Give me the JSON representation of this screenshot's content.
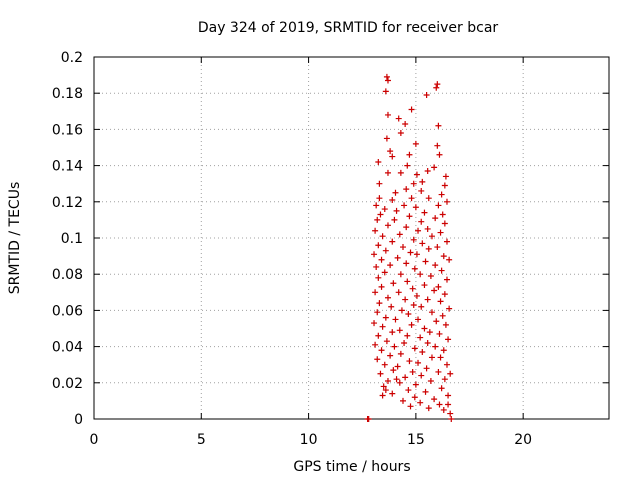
{
  "chart_data": {
    "type": "scatter",
    "title": "Day 324 of 2019, SRMTID for receiver bcar",
    "xlabel": "GPS time / hours",
    "ylabel": "SRMTID / TECUs",
    "xlim": [
      0,
      24
    ],
    "ylim": [
      0,
      0.2
    ],
    "x_ticks": [
      0,
      5,
      10,
      15,
      20
    ],
    "x_tick_labels": [
      "0",
      "5",
      "10",
      "15",
      "20"
    ],
    "y_ticks": [
      0,
      0.02,
      0.04,
      0.06,
      0.08,
      0.1,
      0.12,
      0.14,
      0.16,
      0.18,
      0.2
    ],
    "y_tick_labels": [
      "0",
      "0.02",
      "0.04",
      "0.06",
      "0.08",
      "0.1",
      "0.12",
      "0.14",
      "0.16",
      "0.18",
      "0.2"
    ],
    "grid": true,
    "marker": "plus",
    "color": "#cc0000",
    "series": [
      {
        "name": "SRMTID",
        "points": [
          [
            12.75,
            0.0
          ],
          [
            12.8,
            0.0
          ],
          [
            16.65,
            0.0
          ],
          [
            16.6,
            0.003
          ],
          [
            16.5,
            0.008
          ],
          [
            13.65,
            0.189
          ],
          [
            13.7,
            0.187
          ],
          [
            16.0,
            0.185
          ],
          [
            15.95,
            0.183
          ],
          [
            13.6,
            0.181
          ],
          [
            15.5,
            0.179
          ],
          [
            14.8,
            0.171
          ],
          [
            13.7,
            0.168
          ],
          [
            14.2,
            0.166
          ],
          [
            16.05,
            0.162
          ],
          [
            14.5,
            0.163
          ],
          [
            14.3,
            0.158
          ],
          [
            13.65,
            0.155
          ],
          [
            15.0,
            0.152
          ],
          [
            16.0,
            0.151
          ],
          [
            13.8,
            0.148
          ],
          [
            14.7,
            0.146
          ],
          [
            16.1,
            0.146
          ],
          [
            13.9,
            0.145
          ],
          [
            13.25,
            0.142
          ],
          [
            14.6,
            0.14
          ],
          [
            15.85,
            0.139
          ],
          [
            15.05,
            0.135
          ],
          [
            15.55,
            0.137
          ],
          [
            14.3,
            0.136
          ],
          [
            13.7,
            0.136
          ],
          [
            16.4,
            0.134
          ],
          [
            14.9,
            0.13
          ],
          [
            15.3,
            0.131
          ],
          [
            16.35,
            0.129
          ],
          [
            13.3,
            0.13
          ],
          [
            14.55,
            0.127
          ],
          [
            14.05,
            0.125
          ],
          [
            16.2,
            0.124
          ],
          [
            15.25,
            0.126
          ],
          [
            15.6,
            0.122
          ],
          [
            13.3,
            0.122
          ],
          [
            14.8,
            0.122
          ],
          [
            13.9,
            0.121
          ],
          [
            16.45,
            0.12
          ],
          [
            13.15,
            0.118
          ],
          [
            14.45,
            0.118
          ],
          [
            15.0,
            0.117
          ],
          [
            16.05,
            0.118
          ],
          [
            13.55,
            0.116
          ],
          [
            14.1,
            0.115
          ],
          [
            15.4,
            0.114
          ],
          [
            13.35,
            0.113
          ],
          [
            16.25,
            0.113
          ],
          [
            14.7,
            0.112
          ],
          [
            15.9,
            0.111
          ],
          [
            13.2,
            0.11
          ],
          [
            14.0,
            0.11
          ],
          [
            15.25,
            0.109
          ],
          [
            16.35,
            0.108
          ],
          [
            13.7,
            0.107
          ],
          [
            14.55,
            0.106
          ],
          [
            15.55,
            0.105
          ],
          [
            13.1,
            0.104
          ],
          [
            15.1,
            0.104
          ],
          [
            16.15,
            0.103
          ],
          [
            14.25,
            0.102
          ],
          [
            13.45,
            0.101
          ],
          [
            15.75,
            0.101
          ],
          [
            14.9,
            0.099
          ],
          [
            13.9,
            0.098
          ],
          [
            16.45,
            0.098
          ],
          [
            15.3,
            0.097
          ],
          [
            13.25,
            0.096
          ],
          [
            14.4,
            0.095
          ],
          [
            16.0,
            0.095
          ],
          [
            15.6,
            0.094
          ],
          [
            13.6,
            0.093
          ],
          [
            14.75,
            0.092
          ],
          [
            13.05,
            0.091
          ],
          [
            15.05,
            0.091
          ],
          [
            16.3,
            0.09
          ],
          [
            14.15,
            0.089
          ],
          [
            13.4,
            0.088
          ],
          [
            15.45,
            0.087
          ],
          [
            16.55,
            0.088
          ],
          [
            14.55,
            0.086
          ],
          [
            13.8,
            0.085
          ],
          [
            15.9,
            0.085
          ],
          [
            13.15,
            0.084
          ],
          [
            14.95,
            0.083
          ],
          [
            16.2,
            0.082
          ],
          [
            13.55,
            0.081
          ],
          [
            14.3,
            0.08
          ],
          [
            15.2,
            0.08
          ],
          [
            15.7,
            0.079
          ],
          [
            13.25,
            0.078
          ],
          [
            16.45,
            0.077
          ],
          [
            14.6,
            0.076
          ],
          [
            13.95,
            0.075
          ],
          [
            15.4,
            0.074
          ],
          [
            13.4,
            0.073
          ],
          [
            16.05,
            0.073
          ],
          [
            14.85,
            0.072
          ],
          [
            15.85,
            0.071
          ],
          [
            13.1,
            0.07
          ],
          [
            14.2,
            0.07
          ],
          [
            16.35,
            0.069
          ],
          [
            15.05,
            0.068
          ],
          [
            13.7,
            0.067
          ],
          [
            14.5,
            0.066
          ],
          [
            15.55,
            0.066
          ],
          [
            16.15,
            0.065
          ],
          [
            13.3,
            0.064
          ],
          [
            14.9,
            0.063
          ],
          [
            13.85,
            0.062
          ],
          [
            15.25,
            0.062
          ],
          [
            16.55,
            0.061
          ],
          [
            14.35,
            0.06
          ],
          [
            13.2,
            0.059
          ],
          [
            15.75,
            0.059
          ],
          [
            14.65,
            0.058
          ],
          [
            16.25,
            0.057
          ],
          [
            13.6,
            0.056
          ],
          [
            15.1,
            0.055
          ],
          [
            14.05,
            0.055
          ],
          [
            15.95,
            0.054
          ],
          [
            13.05,
            0.053
          ],
          [
            14.8,
            0.052
          ],
          [
            16.4,
            0.052
          ],
          [
            13.45,
            0.051
          ],
          [
            15.4,
            0.05
          ],
          [
            14.25,
            0.049
          ],
          [
            15.65,
            0.048
          ],
          [
            13.9,
            0.048
          ],
          [
            16.1,
            0.047
          ],
          [
            14.6,
            0.046
          ],
          [
            13.25,
            0.046
          ],
          [
            15.2,
            0.045
          ],
          [
            16.5,
            0.044
          ],
          [
            13.65,
            0.043
          ],
          [
            14.45,
            0.042
          ],
          [
            15.55,
            0.042
          ],
          [
            13.1,
            0.041
          ],
          [
            15.9,
            0.04
          ],
          [
            14.0,
            0.04
          ],
          [
            14.95,
            0.039
          ],
          [
            16.3,
            0.038
          ],
          [
            13.4,
            0.038
          ],
          [
            15.3,
            0.037
          ],
          [
            14.3,
            0.036
          ],
          [
            13.8,
            0.035
          ],
          [
            15.75,
            0.034
          ],
          [
            16.15,
            0.034
          ],
          [
            13.2,
            0.033
          ],
          [
            14.7,
            0.032
          ],
          [
            15.1,
            0.031
          ],
          [
            13.55,
            0.03
          ],
          [
            16.45,
            0.03
          ],
          [
            14.15,
            0.029
          ],
          [
            15.5,
            0.028
          ],
          [
            13.95,
            0.027
          ],
          [
            14.85,
            0.026
          ],
          [
            16.05,
            0.026
          ],
          [
            13.35,
            0.025
          ],
          [
            15.25,
            0.024
          ],
          [
            14.5,
            0.023
          ],
          [
            16.35,
            0.022
          ],
          [
            13.7,
            0.021
          ],
          [
            15.7,
            0.021
          ],
          [
            14.25,
            0.02
          ],
          [
            15.0,
            0.019
          ],
          [
            13.5,
            0.018
          ],
          [
            16.2,
            0.017
          ],
          [
            14.65,
            0.016
          ],
          [
            15.45,
            0.015
          ],
          [
            13.9,
            0.014
          ],
          [
            16.5,
            0.013
          ],
          [
            13.45,
            0.013
          ],
          [
            14.95,
            0.012
          ],
          [
            15.85,
            0.011
          ],
          [
            14.4,
            0.01
          ],
          [
            15.2,
            0.009
          ],
          [
            16.1,
            0.008
          ],
          [
            14.75,
            0.007
          ],
          [
            15.6,
            0.006
          ],
          [
            16.3,
            0.005
          ],
          [
            13.6,
            0.016
          ],
          [
            14.1,
            0.022
          ],
          [
            16.6,
            0.025
          ]
        ]
      }
    ]
  }
}
